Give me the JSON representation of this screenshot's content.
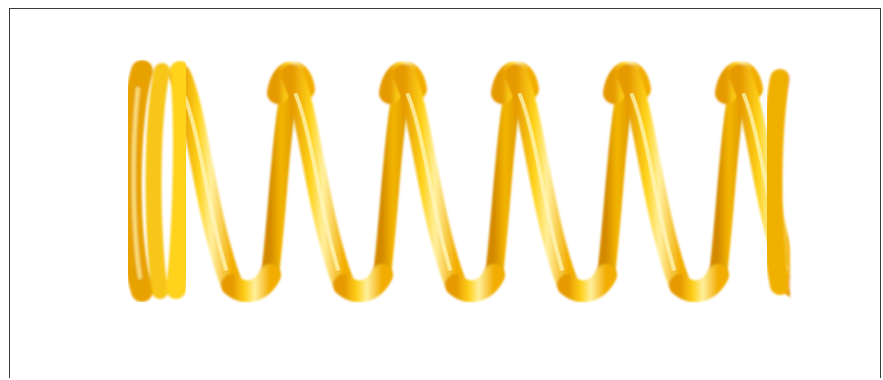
{
  "image": {
    "subject_icon": "yellow-coil-spring",
    "colors": {
      "background": "#ffffff",
      "frame_border": "#3a3a3a",
      "spring_light": "#ffd21a",
      "spring_mid": "#f7b500",
      "spring_dark": "#e59a00",
      "spring_highlight": "#fff4a8"
    }
  }
}
